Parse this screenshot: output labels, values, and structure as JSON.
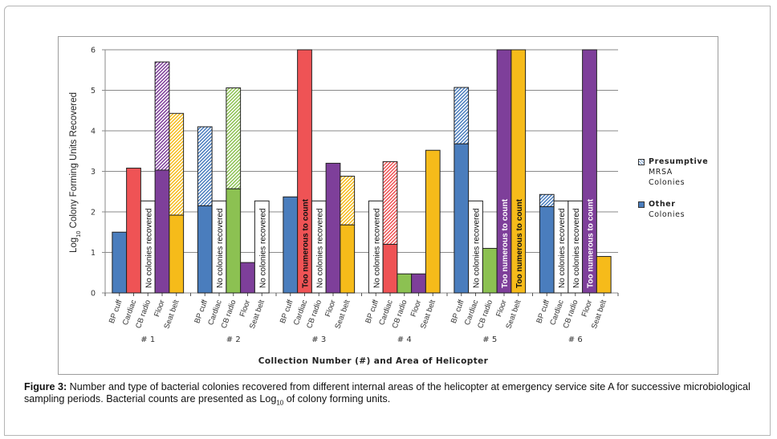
{
  "chart_data": {
    "type": "bar",
    "stacked": true,
    "title": "",
    "xlabel": "Collection Number (#) and Area of Helicopter",
    "ylabel_prefix": "Log",
    "ylabel_sub": "10",
    "ylabel_suffix": " Colony Forming Units Recovered",
    "ylim": [
      0,
      6
    ],
    "yticks": [
      "0",
      "1",
      "2",
      "3",
      "4",
      "5",
      "6"
    ],
    "grid": true,
    "legend_position": "right",
    "legend": [
      {
        "name": "Presumptive MRSA Colonies",
        "line1": "Presumptive",
        "line2": "MRSA",
        "line3": "Colonies",
        "style": "hatched"
      },
      {
        "name": "Other Colonies",
        "line1": "Other",
        "line2": "Colonies",
        "style": "solid"
      }
    ],
    "area_colors": {
      "BP cuff": "#4a7dbd",
      "Cardiac": "#ef5355",
      "CB radio": "#8cc152",
      "Floor": "#7e3f9a",
      "Seat belt": "#f6bb1a"
    },
    "areas": [
      "BP cuff",
      "Cardiac",
      "CB radio",
      "Floor",
      "Seat belt"
    ],
    "groups": [
      {
        "label": "# 1",
        "bars": [
          {
            "area": "BP cuff",
            "other": 1.5,
            "mrsa": 0
          },
          {
            "area": "Cardiac",
            "other": 3.08,
            "mrsa": 0
          },
          {
            "area": "CB radio",
            "status": "No colonies recovered",
            "other": 2.27,
            "mrsa": 0
          },
          {
            "area": "Floor",
            "other": 3.03,
            "mrsa": 2.67
          },
          {
            "area": "Seat belt",
            "other": 1.92,
            "mrsa": 2.51
          }
        ]
      },
      {
        "label": "# 2",
        "bars": [
          {
            "area": "BP cuff",
            "other": 2.15,
            "mrsa": 1.95
          },
          {
            "area": "Cardiac",
            "status": "No colonies recovered",
            "other": 2.27,
            "mrsa": 0
          },
          {
            "area": "CB radio",
            "other": 2.57,
            "mrsa": 2.49
          },
          {
            "area": "Floor",
            "other": 0.75,
            "mrsa": 0
          },
          {
            "area": "Seat belt",
            "status": "No colonies recovered",
            "other": 2.27,
            "mrsa": 0
          }
        ]
      },
      {
        "label": "# 3",
        "bars": [
          {
            "area": "BP cuff",
            "other": 2.37,
            "mrsa": 0
          },
          {
            "area": "Cardiac",
            "status": "Too numerous to count",
            "other": 6,
            "mrsa": 0
          },
          {
            "area": "CB radio",
            "status": "No colonies recovered",
            "other": 2.27,
            "mrsa": 0
          },
          {
            "area": "Floor",
            "other": 3.2,
            "mrsa": 0
          },
          {
            "area": "Seat belt",
            "other": 1.68,
            "mrsa": 1.2
          }
        ]
      },
      {
        "label": "# 4",
        "bars": [
          {
            "area": "BP cuff",
            "status": "No colonies recovered",
            "other": 2.27,
            "mrsa": 0
          },
          {
            "area": "Cardiac",
            "other": 1.2,
            "mrsa": 2.04
          },
          {
            "area": "CB radio",
            "other": 0.47,
            "mrsa": 0
          },
          {
            "area": "Floor",
            "other": 0.47,
            "mrsa": 0
          },
          {
            "area": "Seat belt",
            "other": 3.52,
            "mrsa": 0
          }
        ]
      },
      {
        "label": "# 5",
        "bars": [
          {
            "area": "BP cuff",
            "other": 3.68,
            "mrsa": 1.39
          },
          {
            "area": "Cardiac",
            "status": "No colonies recovered",
            "other": 2.27,
            "mrsa": 0
          },
          {
            "area": "CB radio",
            "other": 1.1,
            "mrsa": 0
          },
          {
            "area": "Floor",
            "status": "Too numerous to count",
            "other": 6,
            "mrsa": 0
          },
          {
            "area": "Seat belt",
            "status": "Too numerous to count",
            "other": 6,
            "mrsa": 0
          }
        ]
      },
      {
        "label": "# 6",
        "bars": [
          {
            "area": "BP cuff",
            "other": 2.13,
            "mrsa": 0.3
          },
          {
            "area": "Cardiac",
            "status": "No colonies recovered",
            "other": 2.27,
            "mrsa": 0
          },
          {
            "area": "CB radio",
            "status": "No colonies recovered",
            "other": 2.27,
            "mrsa": 0
          },
          {
            "area": "Floor",
            "status": "Too numerous to count",
            "other": 6,
            "mrsa": 0
          },
          {
            "area": "Seat belt",
            "other": 0.9,
            "mrsa": 0
          }
        ]
      }
    ]
  },
  "caption": {
    "figure_label": "Figure 3:",
    "text_part1": " Number and type of bacterial colonies recovered from different internal areas of the helicopter at emergency service site A for successive microbiological sampling periods. Bacterial counts are presented as Log",
    "text_sub": "10",
    "text_part2": " of colony forming units."
  }
}
